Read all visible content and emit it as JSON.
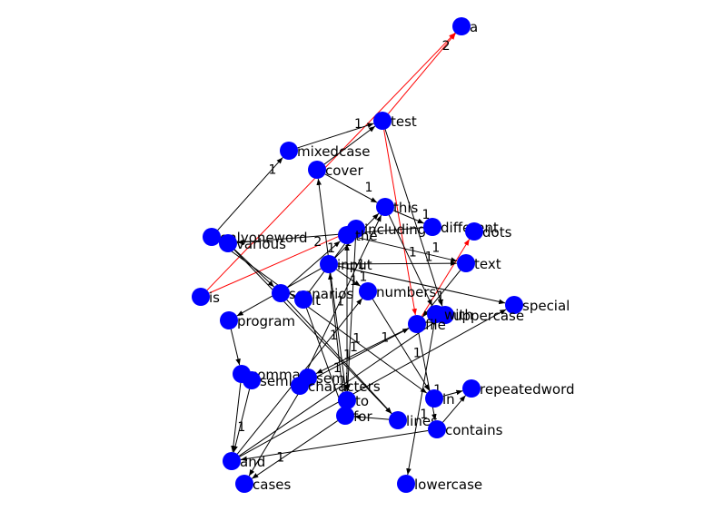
{
  "graph": {
    "colors": {
      "node": "#0000ff",
      "edge": "#000000",
      "highlight_edge": "#ff0000",
      "background": "#ffffff"
    },
    "nodes": [
      {
        "id": "a",
        "label": "a"
      },
      {
        "id": "test",
        "label": "test"
      },
      {
        "id": "mixedcase",
        "label": "mixedcase"
      },
      {
        "id": "cover",
        "label": "cover"
      },
      {
        "id": "this",
        "label": "this"
      },
      {
        "id": "onlyoneword",
        "label": "onlyoneword"
      },
      {
        "id": "various",
        "label": "various"
      },
      {
        "id": "including",
        "label": "including"
      },
      {
        "id": "different",
        "label": "different"
      },
      {
        "id": "dots",
        "label": "dots"
      },
      {
        "id": "the",
        "label": "the"
      },
      {
        "id": "input",
        "label": "input"
      },
      {
        "id": "text",
        "label": "text"
      },
      {
        "id": "is",
        "label": "is"
      },
      {
        "id": "scenarios",
        "label": "scenarios"
      },
      {
        "id": "it",
        "label": "it"
      },
      {
        "id": "numbers",
        "label": "numbers"
      },
      {
        "id": "special",
        "label": "special"
      },
      {
        "id": "uppercase",
        "label": "uppercase"
      },
      {
        "id": "with",
        "label": "with"
      },
      {
        "id": "file",
        "label": "file"
      },
      {
        "id": "program",
        "label": "program"
      },
      {
        "id": "commas",
        "label": "comma"
      },
      {
        "id": "semicolons",
        "label": "semi"
      },
      {
        "id": "semi",
        "label": "semi"
      },
      {
        "id": "characters",
        "label": "characters"
      },
      {
        "id": "repeatedword",
        "label": "repeatedword"
      },
      {
        "id": "to",
        "label": "to"
      },
      {
        "id": "in",
        "label": "in"
      },
      {
        "id": "for",
        "label": "for"
      },
      {
        "id": "lines",
        "label": "lines"
      },
      {
        "id": "contains",
        "label": "contains"
      },
      {
        "id": "and",
        "label": "and"
      },
      {
        "id": "cases",
        "label": "cases"
      },
      {
        "id": "lowercase",
        "label": "lowercase"
      }
    ],
    "edges": [
      {
        "from": "test",
        "to": "a",
        "weight": "2",
        "highlight": true
      },
      {
        "from": "is",
        "to": "a",
        "weight": "",
        "highlight": true
      },
      {
        "from": "test",
        "to": "file",
        "weight": "1",
        "highlight": true
      },
      {
        "from": "is",
        "to": "including",
        "weight": "2",
        "highlight": true
      },
      {
        "from": "file",
        "to": "dots",
        "weight": "",
        "highlight": true
      },
      {
        "from": "mixedcase",
        "to": "test",
        "weight": "1",
        "highlight": false
      },
      {
        "from": "onlyoneword",
        "to": "mixedcase",
        "weight": "1",
        "highlight": false
      },
      {
        "from": "cover",
        "to": "test",
        "weight": "",
        "highlight": false
      },
      {
        "from": "cover",
        "to": "this",
        "weight": "1",
        "highlight": false
      },
      {
        "from": "test",
        "to": "uppercase",
        "weight": "",
        "highlight": false
      },
      {
        "from": "this",
        "to": "different",
        "weight": "1",
        "highlight": false
      },
      {
        "from": "this",
        "to": "with",
        "weight": "",
        "highlight": false
      },
      {
        "from": "input",
        "to": "text",
        "weight": "1",
        "highlight": false
      },
      {
        "from": "input",
        "to": "numbers",
        "weight": "1",
        "highlight": false
      },
      {
        "from": "input",
        "to": "program",
        "weight": "",
        "highlight": false
      },
      {
        "from": "input",
        "to": "special",
        "weight": "",
        "highlight": false
      },
      {
        "from": "onlyoneword",
        "to": "in",
        "weight": "",
        "highlight": false
      },
      {
        "from": "various",
        "to": "lines",
        "weight": "",
        "highlight": false
      },
      {
        "from": "scenarios",
        "to": "the",
        "weight": "1",
        "highlight": false
      },
      {
        "from": "the",
        "to": "text",
        "weight": "1",
        "highlight": false
      },
      {
        "from": "it",
        "to": "including",
        "weight": "1",
        "highlight": false
      },
      {
        "from": "it",
        "to": "for",
        "weight": "1",
        "highlight": false
      },
      {
        "from": "to",
        "to": "the",
        "weight": "1",
        "highlight": false
      },
      {
        "from": "for",
        "to": "input",
        "weight": "1",
        "highlight": false
      },
      {
        "from": "characters",
        "to": "this",
        "weight": "1",
        "highlight": false
      },
      {
        "from": "characters",
        "to": "file",
        "weight": "1",
        "highlight": false
      },
      {
        "from": "and",
        "to": "numbers",
        "weight": "1",
        "highlight": false
      },
      {
        "from": "and",
        "to": "special",
        "weight": "",
        "highlight": false
      },
      {
        "from": "and",
        "to": "uppercase",
        "weight": "",
        "highlight": false
      },
      {
        "from": "commas",
        "to": "and",
        "weight": "1",
        "highlight": false
      },
      {
        "from": "semi",
        "to": "and",
        "weight": "",
        "highlight": false
      },
      {
        "from": "program",
        "to": "commas",
        "weight": "",
        "highlight": false
      },
      {
        "from": "to",
        "to": "cover",
        "weight": "",
        "highlight": false
      },
      {
        "from": "for",
        "to": "cases",
        "weight": "1",
        "highlight": false
      },
      {
        "from": "numbers",
        "to": "in",
        "weight": "1",
        "highlight": false
      },
      {
        "from": "in",
        "to": "repeatedword",
        "weight": "",
        "highlight": false
      },
      {
        "from": "contains",
        "to": "repeatedword",
        "weight": "",
        "highlight": false
      },
      {
        "from": "with",
        "to": "lowercase",
        "weight": "1",
        "highlight": false
      },
      {
        "from": "lines",
        "to": "for",
        "weight": "",
        "highlight": false
      },
      {
        "from": "file",
        "to": "contains",
        "weight": "1",
        "highlight": false
      },
      {
        "from": "the",
        "to": "to",
        "weight": "1",
        "highlight": false
      },
      {
        "from": "scenarios",
        "to": "lines",
        "weight": "",
        "highlight": false
      },
      {
        "from": "including",
        "to": "to",
        "weight": "1",
        "highlight": false
      },
      {
        "from": "various",
        "to": "scenarios",
        "weight": "",
        "highlight": false
      },
      {
        "from": "different",
        "to": "various",
        "weight": "",
        "highlight": false
      },
      {
        "from": "contains",
        "to": "and",
        "weight": "",
        "highlight": false
      },
      {
        "from": "file",
        "to": "semicolons",
        "weight": "1",
        "highlight": false
      },
      {
        "from": "semicolons",
        "to": "cases",
        "weight": "",
        "highlight": false
      },
      {
        "from": "text",
        "to": "file",
        "weight": "1",
        "highlight": false
      },
      {
        "from": "input",
        "to": "this",
        "weight": "",
        "highlight": false
      }
    ]
  }
}
